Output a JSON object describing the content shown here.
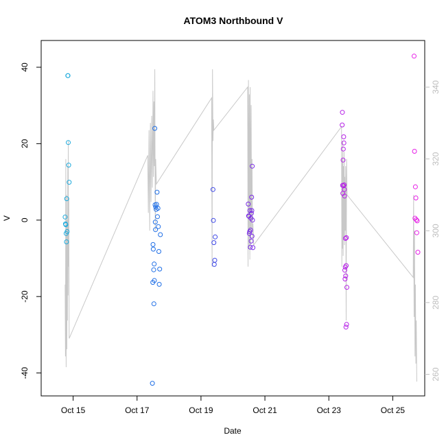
{
  "chart_data": {
    "type": "scatter",
    "title": "ATOM3 Northbound V",
    "xlabel": "Date",
    "ylabel": "V",
    "xlim": [
      "2024-10-14 00:00",
      "2024-10-26 00:00"
    ],
    "ylim": [
      -46,
      47
    ],
    "x_ticks": [
      {
        "label": "Oct 15",
        "value": "2024-10-15"
      },
      {
        "label": "Oct 17",
        "value": "2024-10-17"
      },
      {
        "label": "Oct 19",
        "value": "2024-10-19"
      },
      {
        "label": "Oct 21",
        "value": "2024-10-21"
      },
      {
        "label": "Oct 23",
        "value": "2024-10-23"
      },
      {
        "label": "Oct 25",
        "value": "2024-10-25"
      }
    ],
    "y_ticks": [
      -40,
      -20,
      0,
      20,
      40
    ],
    "y2_ticks": [
      260,
      280,
      300,
      320,
      340
    ],
    "y2_lim": [
      254,
      353
    ],
    "grid": false,
    "legend": "none",
    "colors": {
      "line": "#c8c8c8",
      "axis": "#000000",
      "y2_axis": "#bdbdbd"
    },
    "series": [
      {
        "color": "#1eaadc",
        "points": [
          {
            "x": "2024-10-14 18:00",
            "y": 0.8
          },
          {
            "x": "2024-10-14 18:15",
            "y": -1.0
          },
          {
            "x": "2024-10-14 18:30",
            "y": -1.2
          },
          {
            "x": "2024-10-14 18:45",
            "y": -3.5
          },
          {
            "x": "2024-10-14 19:00",
            "y": -5.7
          },
          {
            "x": "2024-10-14 19:10",
            "y": 5.6
          },
          {
            "x": "2024-10-14 19:30",
            "y": -3.0
          },
          {
            "x": "2024-10-14 20:00",
            "y": 37.8
          },
          {
            "x": "2024-10-14 20:10",
            "y": 37.8
          },
          {
            "x": "2024-10-14 20:20",
            "y": 20.3
          },
          {
            "x": "2024-10-14 20:40",
            "y": 14.4
          },
          {
            "x": "2024-10-14 21:00",
            "y": 9.9
          }
        ]
      },
      {
        "color": "#1e6ee6",
        "points": [
          {
            "x": "2024-10-17 11:30",
            "y": -42.7
          },
          {
            "x": "2024-10-17 11:50",
            "y": -16.3
          },
          {
            "x": "2024-10-17 12:00",
            "y": -6.4
          },
          {
            "x": "2024-10-17 12:10",
            "y": -7.6
          },
          {
            "x": "2024-10-17 12:30",
            "y": -13.0
          },
          {
            "x": "2024-10-17 12:40",
            "y": -21.9
          },
          {
            "x": "2024-10-17 12:50",
            "y": -11.5
          },
          {
            "x": "2024-10-17 13:00",
            "y": -15.8
          },
          {
            "x": "2024-10-17 13:20",
            "y": 24.0
          },
          {
            "x": "2024-10-17 13:30",
            "y": 4.0
          },
          {
            "x": "2024-10-17 13:40",
            "y": -0.5
          },
          {
            "x": "2024-10-17 13:50",
            "y": -2.5
          },
          {
            "x": "2024-10-17 14:00",
            "y": 3.4
          },
          {
            "x": "2024-10-17 14:20",
            "y": 2.8
          },
          {
            "x": "2024-10-17 14:40",
            "y": 4.1
          },
          {
            "x": "2024-10-17 15:00",
            "y": 7.3
          },
          {
            "x": "2024-10-17 15:20",
            "y": 0.9
          },
          {
            "x": "2024-10-17 15:40",
            "y": 3.1
          },
          {
            "x": "2024-10-17 16:00",
            "y": -1.7
          },
          {
            "x": "2024-10-17 16:20",
            "y": -8.2
          },
          {
            "x": "2024-10-17 16:40",
            "y": -16.8
          },
          {
            "x": "2024-10-17 17:00",
            "y": -12.8
          },
          {
            "x": "2024-10-17 17:30",
            "y": -3.8
          }
        ]
      },
      {
        "color": "#3c46e6",
        "points": [
          {
            "x": "2024-10-19 09:00",
            "y": 8.0
          },
          {
            "x": "2024-10-19 09:20",
            "y": -0.1
          },
          {
            "x": "2024-10-19 09:40",
            "y": -5.9
          },
          {
            "x": "2024-10-19 10:00",
            "y": -11.6
          },
          {
            "x": "2024-10-19 10:20",
            "y": -10.5
          },
          {
            "x": "2024-10-19 10:40",
            "y": -4.4
          }
        ]
      },
      {
        "color": "#7828e6",
        "points": [
          {
            "x": "2024-10-20 11:30",
            "y": 4.2
          },
          {
            "x": "2024-10-20 11:45",
            "y": 1.1
          },
          {
            "x": "2024-10-20 12:00",
            "y": 1.0
          },
          {
            "x": "2024-10-20 12:15",
            "y": -3.5
          },
          {
            "x": "2024-10-20 12:30",
            "y": -3.0
          },
          {
            "x": "2024-10-20 12:45",
            "y": 2.5
          },
          {
            "x": "2024-10-20 13:00",
            "y": -7.1
          },
          {
            "x": "2024-10-20 13:15",
            "y": -2.6
          },
          {
            "x": "2024-10-20 13:30",
            "y": 0.5
          },
          {
            "x": "2024-10-20 13:40",
            "y": -5.5
          },
          {
            "x": "2024-10-20 13:50",
            "y": 1.8
          },
          {
            "x": "2024-10-20 14:00",
            "y": 6.0
          },
          {
            "x": "2024-10-20 14:10",
            "y": 2.5
          },
          {
            "x": "2024-10-20 14:20",
            "y": -4.2
          },
          {
            "x": "2024-10-20 14:30",
            "y": 14.1
          },
          {
            "x": "2024-10-20 14:40",
            "y": 0.0
          },
          {
            "x": "2024-10-20 15:00",
            "y": -7.2
          }
        ]
      },
      {
        "color": "#b41ee6",
        "points": [
          {
            "x": "2024-10-23 10:00",
            "y": 24.9
          },
          {
            "x": "2024-10-23 10:10",
            "y": 28.2
          },
          {
            "x": "2024-10-23 10:20",
            "y": 9.1
          },
          {
            "x": "2024-10-23 10:30",
            "y": 7.0
          },
          {
            "x": "2024-10-23 10:40",
            "y": 15.7
          },
          {
            "x": "2024-10-23 10:50",
            "y": 18.6
          },
          {
            "x": "2024-10-23 11:00",
            "y": 9.0
          },
          {
            "x": "2024-10-23 11:10",
            "y": 21.8
          },
          {
            "x": "2024-10-23 11:20",
            "y": 20.2
          },
          {
            "x": "2024-10-23 11:30",
            "y": 9.2
          },
          {
            "x": "2024-10-23 11:40",
            "y": 8.0
          },
          {
            "x": "2024-10-23 11:50",
            "y": 6.3
          },
          {
            "x": "2024-10-23 12:00",
            "y": -13.1
          },
          {
            "x": "2024-10-23 12:10",
            "y": -15.4
          },
          {
            "x": "2024-10-23 12:20",
            "y": -12.3
          },
          {
            "x": "2024-10-23 12:30",
            "y": -4.8
          },
          {
            "x": "2024-10-23 12:40",
            "y": -14.6
          },
          {
            "x": "2024-10-23 12:50",
            "y": -28.0
          },
          {
            "x": "2024-10-23 13:00",
            "y": -11.9
          },
          {
            "x": "2024-10-23 13:10",
            "y": -4.6
          },
          {
            "x": "2024-10-23 13:20",
            "y": -27.3
          },
          {
            "x": "2024-10-23 13:30",
            "y": -17.6
          }
        ]
      },
      {
        "color": "#e61ee6",
        "points": [
          {
            "x": "2024-10-25 16:00",
            "y": 42.9
          },
          {
            "x": "2024-10-25 16:20",
            "y": 18.0
          },
          {
            "x": "2024-10-25 16:40",
            "y": 0.5
          },
          {
            "x": "2024-10-25 17:00",
            "y": 8.7
          },
          {
            "x": "2024-10-25 17:20",
            "y": 5.8
          },
          {
            "x": "2024-10-25 17:40",
            "y": 0.1
          },
          {
            "x": "2024-10-25 18:00",
            "y": -3.3
          },
          {
            "x": "2024-10-25 18:20",
            "y": -0.2
          },
          {
            "x": "2024-10-25 18:50",
            "y": -8.4
          }
        ]
      }
    ],
    "line_y2": [
      {
        "x": "2024-10-14 18:00",
        "y": 285
      },
      {
        "x": "2024-10-14 18:15",
        "y": 265
      },
      {
        "x": "2024-10-14 18:30",
        "y": 320
      },
      {
        "x": "2024-10-14 18:45",
        "y": 262
      },
      {
        "x": "2024-10-14 19:00",
        "y": 310
      },
      {
        "x": "2024-10-14 19:15",
        "y": 267
      },
      {
        "x": "2024-10-14 19:30",
        "y": 303
      },
      {
        "x": "2024-10-14 19:45",
        "y": 275
      },
      {
        "x": "2024-10-14 20:00",
        "y": 318
      },
      {
        "x": "2024-10-14 20:10",
        "y": 282
      },
      {
        "x": "2024-10-14 20:20",
        "y": 325
      },
      {
        "x": "2024-10-14 20:30",
        "y": 290
      },
      {
        "x": "2024-10-14 20:45",
        "y": 309
      },
      {
        "x": "2024-10-14 21:00",
        "y": 270
      },
      {
        "x": "2024-10-17 08:00",
        "y": 321
      },
      {
        "x": "2024-10-17 08:30",
        "y": 305
      },
      {
        "x": "2024-10-17 09:00",
        "y": 328
      },
      {
        "x": "2024-10-17 09:30",
        "y": 300
      },
      {
        "x": "2024-10-17 10:00",
        "y": 330
      },
      {
        "x": "2024-10-17 10:30",
        "y": 308
      },
      {
        "x": "2024-10-17 11:00",
        "y": 332
      },
      {
        "x": "2024-10-17 11:30",
        "y": 312
      },
      {
        "x": "2024-10-17 12:00",
        "y": 339
      },
      {
        "x": "2024-10-17 12:20",
        "y": 315
      },
      {
        "x": "2024-10-17 12:40",
        "y": 336
      },
      {
        "x": "2024-10-17 13:00",
        "y": 318
      },
      {
        "x": "2024-10-17 13:20",
        "y": 345
      },
      {
        "x": "2024-10-17 13:40",
        "y": 300
      },
      {
        "x": "2024-10-17 14:00",
        "y": 320
      },
      {
        "x": "2024-10-17 14:30",
        "y": 313
      },
      {
        "x": "2024-10-19 08:00",
        "y": 337
      },
      {
        "x": "2024-10-19 08:20",
        "y": 290
      },
      {
        "x": "2024-10-19 08:40",
        "y": 345
      },
      {
        "x": "2024-10-19 09:00",
        "y": 325
      },
      {
        "x": "2024-10-19 09:20",
        "y": 331
      },
      {
        "x": "2024-10-19 09:40",
        "y": 328
      },
      {
        "x": "2024-10-20 11:00",
        "y": 340
      },
      {
        "x": "2024-10-20 11:20",
        "y": 290
      },
      {
        "x": "2024-10-20 11:40",
        "y": 342
      },
      {
        "x": "2024-10-20 12:00",
        "y": 295
      },
      {
        "x": "2024-10-20 12:20",
        "y": 338
      },
      {
        "x": "2024-10-20 12:40",
        "y": 292
      },
      {
        "x": "2024-10-20 13:00",
        "y": 340
      },
      {
        "x": "2024-10-20 13:20",
        "y": 296
      },
      {
        "x": "2024-10-20 13:40",
        "y": 335
      },
      {
        "x": "2024-10-20 14:00",
        "y": 300
      },
      {
        "x": "2024-10-20 14:20",
        "y": 320
      },
      {
        "x": "2024-10-20 14:40",
        "y": 298
      },
      {
        "x": "2024-10-20 15:00",
        "y": 302
      },
      {
        "x": "2024-10-20 15:30",
        "y": 296
      },
      {
        "x": "2024-10-23 09:30",
        "y": 329
      },
      {
        "x": "2024-10-23 09:45",
        "y": 290
      },
      {
        "x": "2024-10-23 10:00",
        "y": 320
      },
      {
        "x": "2024-10-23 10:15",
        "y": 295
      },
      {
        "x": "2024-10-23 10:30",
        "y": 325
      },
      {
        "x": "2024-10-23 10:45",
        "y": 293
      },
      {
        "x": "2024-10-23 11:00",
        "y": 318
      },
      {
        "x": "2024-10-23 11:15",
        "y": 298
      },
      {
        "x": "2024-10-23 11:30",
        "y": 322
      },
      {
        "x": "2024-10-23 11:45",
        "y": 296
      },
      {
        "x": "2024-10-23 12:00",
        "y": 315
      },
      {
        "x": "2024-10-23 12:20",
        "y": 300
      },
      {
        "x": "2024-10-23 12:40",
        "y": 318
      },
      {
        "x": "2024-10-23 13:00",
        "y": 275
      },
      {
        "x": "2024-10-23 13:20",
        "y": 320
      },
      {
        "x": "2024-10-23 13:40",
        "y": 310
      },
      {
        "x": "2024-10-25 15:20",
        "y": 287
      },
      {
        "x": "2024-10-25 15:40",
        "y": 310
      },
      {
        "x": "2024-10-25 16:00",
        "y": 276
      },
      {
        "x": "2024-10-25 16:20",
        "y": 300
      },
      {
        "x": "2024-10-25 16:40",
        "y": 265
      },
      {
        "x": "2024-10-25 17:00",
        "y": 285
      },
      {
        "x": "2024-10-25 17:20",
        "y": 263
      },
      {
        "x": "2024-10-25 17:40",
        "y": 275
      },
      {
        "x": "2024-10-25 18:00",
        "y": 258
      }
    ]
  }
}
